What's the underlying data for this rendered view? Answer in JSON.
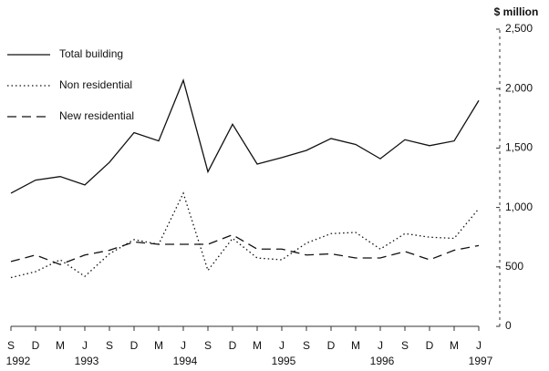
{
  "chart_data": {
    "type": "line",
    "y_axis_label": "$ million",
    "categories": [
      "S",
      "D",
      "M",
      "J",
      "S",
      "D",
      "M",
      "J",
      "S",
      "D",
      "M",
      "J",
      "S",
      "D",
      "M",
      "J",
      "S",
      "D",
      "M",
      "J"
    ],
    "year_labels": [
      "1992",
      null,
      null,
      "1993",
      null,
      null,
      null,
      "1994",
      null,
      null,
      null,
      "1995",
      null,
      null,
      null,
      "1996",
      null,
      null,
      null,
      "1997"
    ],
    "series": [
      {
        "name": "Total building",
        "color": "#111111",
        "style": "solid",
        "values": [
          1120,
          1230,
          1260,
          1190,
          1380,
          1630,
          1560,
          2070,
          1300,
          1700,
          1365,
          1420,
          1480,
          1580,
          1530,
          1410,
          1570,
          1520,
          1560,
          1900
        ]
      },
      {
        "name": "Non residential",
        "color": "#111111",
        "style": "dotted",
        "values": [
          410,
          460,
          560,
          420,
          610,
          730,
          690,
          1120,
          470,
          740,
          575,
          560,
          700,
          780,
          790,
          650,
          780,
          750,
          740,
          990
        ]
      },
      {
        "name": "New residential",
        "color": "#111111",
        "style": "dashed",
        "values": [
          545,
          600,
          520,
          600,
          640,
          710,
          690,
          690,
          690,
          770,
          650,
          650,
          600,
          610,
          575,
          575,
          630,
          560,
          640,
          680
        ]
      }
    ],
    "ylim": [
      0,
      2500
    ],
    "yticks": [
      0,
      500,
      {
        "value": 1000,
        "label": "1,000"
      },
      {
        "value": 1500,
        "label": "1,500"
      },
      {
        "value": 2000,
        "label": "2,000"
      },
      {
        "value": 2500,
        "label": "2,500"
      }
    ],
    "legend": "top-left"
  }
}
